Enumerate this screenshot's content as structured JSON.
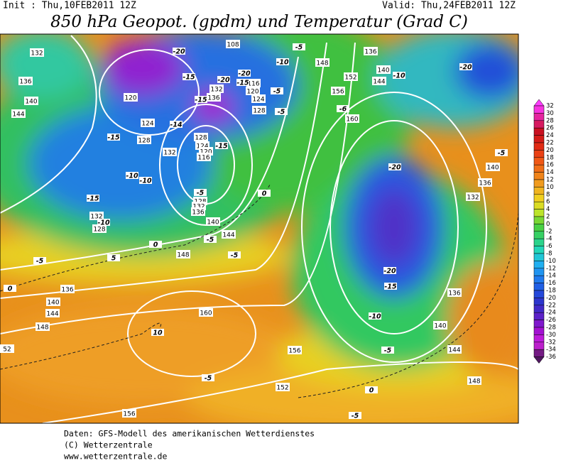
{
  "header": {
    "init": "Init : Thu,10FEB2011 12Z",
    "valid": "Valid: Thu,24FEB2011 12Z",
    "title": "850 hPa Geopot. (gpdm) und Temperatur (Grad C)"
  },
  "colorbar": {
    "labels": [
      32,
      30,
      28,
      26,
      24,
      22,
      20,
      18,
      16,
      14,
      12,
      10,
      8,
      6,
      4,
      2,
      0,
      -2,
      -4,
      -6,
      -8,
      -10,
      -12,
      -14,
      -16,
      -18,
      -20,
      -22,
      -24,
      -26,
      -28,
      -30,
      -32,
      -34,
      -36
    ],
    "colors": [
      "#ff3cff",
      "#e0208c",
      "#c8101c",
      "#e02814",
      "#f05014",
      "#f07818",
      "#f0a020",
      "#f0d020",
      "#c8e628",
      "#50d038",
      "#30d070",
      "#20d8c0",
      "#20b0f0",
      "#2080f0",
      "#2050e0",
      "#3030c8",
      "#6020c8",
      "#a010d0",
      "#d020e0",
      "#501860"
    ]
  },
  "contour_labels": {
    "geopotential": [
      132,
      108,
      136,
      140,
      148,
      152,
      144,
      156,
      136,
      140,
      144,
      120,
      124,
      128,
      132,
      136,
      132,
      128,
      124,
      120,
      116,
      128,
      124,
      120,
      116,
      128,
      132,
      136,
      140,
      144,
      148,
      136,
      140,
      144,
      148,
      52,
      160,
      156,
      152,
      156,
      160,
      140,
      136,
      132,
      136,
      140,
      144,
      148,
      132,
      128
    ],
    "temperature": [
      -20,
      -15,
      -15,
      -20,
      -20,
      -15,
      -10,
      -5,
      -5,
      -5,
      -10,
      -20,
      -6,
      -15,
      -14,
      -15,
      -10,
      -10,
      -5,
      0,
      -15,
      -10,
      0,
      -5,
      -5,
      -5,
      0,
      10,
      -5,
      0,
      -5,
      -20,
      -5,
      -20,
      -15,
      -10,
      -5,
      5
    ]
  },
  "footer": {
    "lines": [
      "Daten: GFS-Modell des amerikanischen Wetterdienstes",
      "(C) Wetterzentrale",
      "www.wetterzentrale.de"
    ]
  }
}
